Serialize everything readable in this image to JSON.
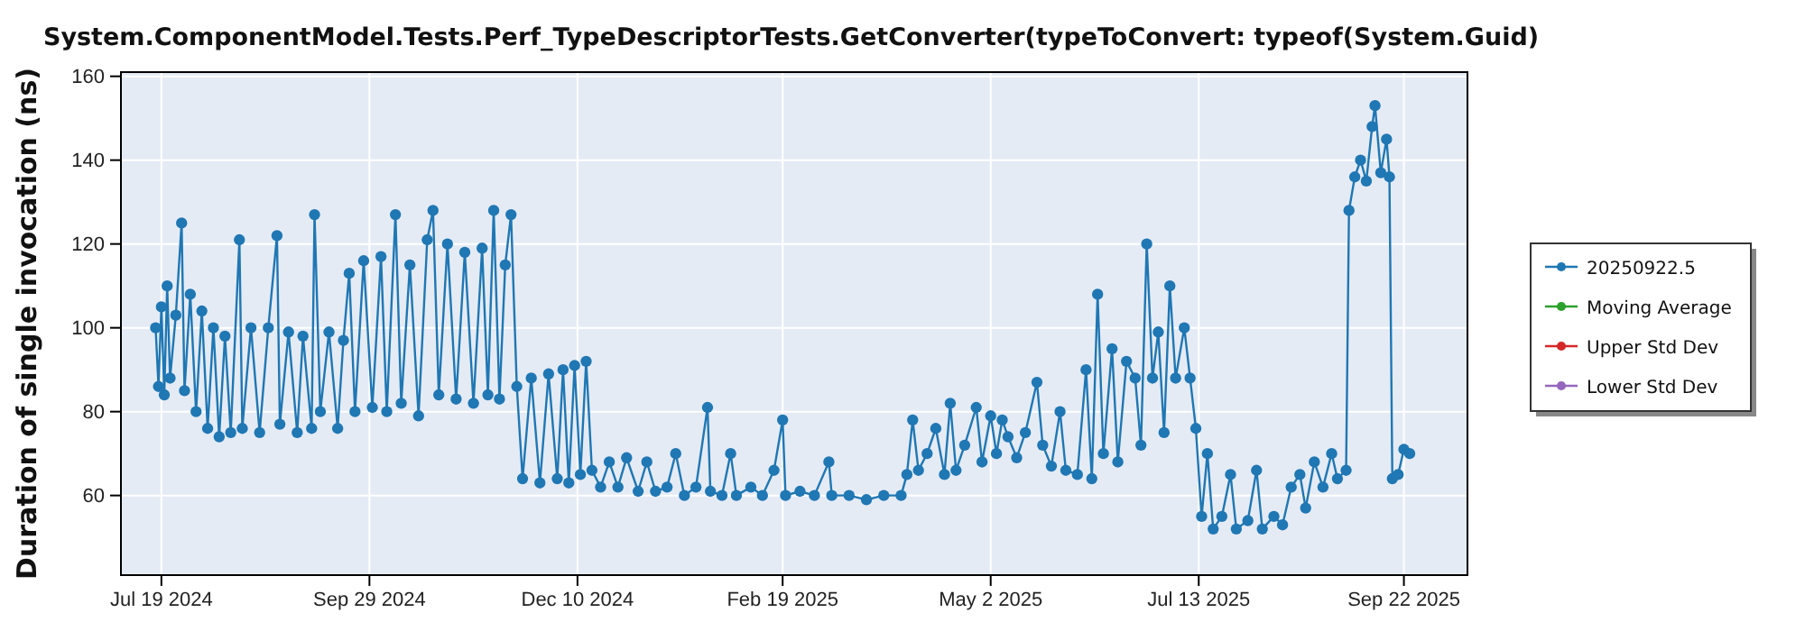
{
  "chart_data": {
    "type": "line",
    "title": "System.ComponentModel.Tests.Perf_TypeDescriptorTests.GetConverter(typeToConvert: typeof(System.Guid)",
    "ylabel": "Duration of single invocation (ns)",
    "x": [
      "2024-07-17",
      "2024-07-18",
      "2024-07-19",
      "2024-07-20",
      "2024-07-21",
      "2024-07-22",
      "2024-07-24",
      "2024-07-26",
      "2024-07-27",
      "2024-07-29",
      "2024-07-31",
      "2024-08-02",
      "2024-08-04",
      "2024-08-06",
      "2024-08-08",
      "2024-08-10",
      "2024-08-12",
      "2024-08-15",
      "2024-08-16",
      "2024-08-19",
      "2024-08-22",
      "2024-08-25",
      "2024-08-28",
      "2024-08-29",
      "2024-09-01",
      "2024-09-04",
      "2024-09-06",
      "2024-09-09",
      "2024-09-10",
      "2024-09-12",
      "2024-09-15",
      "2024-09-18",
      "2024-09-20",
      "2024-09-22",
      "2024-09-24",
      "2024-09-27",
      "2024-09-30",
      "2024-10-03",
      "2024-10-05",
      "2024-10-08",
      "2024-10-10",
      "2024-10-13",
      "2024-10-16",
      "2024-10-19",
      "2024-10-21",
      "2024-10-23",
      "2024-10-26",
      "2024-10-29",
      "2024-11-01",
      "2024-11-04",
      "2024-11-07",
      "2024-11-09",
      "2024-11-11",
      "2024-11-13",
      "2024-11-15",
      "2024-11-17",
      "2024-11-19",
      "2024-11-21",
      "2024-11-24",
      "2024-11-27",
      "2024-11-30",
      "2024-12-03",
      "2024-12-05",
      "2024-12-07",
      "2024-12-09",
      "2024-12-11",
      "2024-12-13",
      "2024-12-15",
      "2024-12-18",
      "2024-12-21",
      "2024-12-24",
      "2024-12-27",
      "2024-12-31",
      "2025-01-03",
      "2025-01-06",
      "2025-01-10",
      "2025-01-13",
      "2025-01-16",
      "2025-01-20",
      "2025-01-24",
      "2025-01-25",
      "2025-01-29",
      "2025-02-01",
      "2025-02-03",
      "2025-02-08",
      "2025-02-12",
      "2025-02-16",
      "2025-02-19",
      "2025-02-20",
      "2025-02-25",
      "2025-03-02",
      "2025-03-07",
      "2025-03-08",
      "2025-03-14",
      "2025-03-20",
      "2025-03-26",
      "2025-04-01",
      "2025-04-03",
      "2025-04-05",
      "2025-04-07",
      "2025-04-10",
      "2025-04-13",
      "2025-04-16",
      "2025-04-18",
      "2025-04-20",
      "2025-04-23",
      "2025-04-27",
      "2025-04-29",
      "2025-05-02",
      "2025-05-04",
      "2025-05-06",
      "2025-05-08",
      "2025-05-11",
      "2025-05-14",
      "2025-05-18",
      "2025-05-20",
      "2025-05-23",
      "2025-05-26",
      "2025-05-28",
      "2025-06-01",
      "2025-06-04",
      "2025-06-06",
      "2025-06-08",
      "2025-06-10",
      "2025-06-13",
      "2025-06-15",
      "2025-06-18",
      "2025-06-21",
      "2025-06-23",
      "2025-06-25",
      "2025-06-27",
      "2025-06-29",
      "2025-07-01",
      "2025-07-03",
      "2025-07-05",
      "2025-07-08",
      "2025-07-10",
      "2025-07-12",
      "2025-07-14",
      "2025-07-16",
      "2025-07-18",
      "2025-07-21",
      "2025-07-24",
      "2025-07-26",
      "2025-07-30",
      "2025-08-02",
      "2025-08-04",
      "2025-08-08",
      "2025-08-11",
      "2025-08-14",
      "2025-08-17",
      "2025-08-19",
      "2025-08-22",
      "2025-08-25",
      "2025-08-28",
      "2025-08-30",
      "2025-09-02",
      "2025-09-03",
      "2025-09-05",
      "2025-09-07",
      "2025-09-09",
      "2025-09-11",
      "2025-09-12",
      "2025-09-14",
      "2025-09-16",
      "2025-09-17",
      "2025-09-18",
      "2025-09-20",
      "2025-09-22",
      "2025-09-24"
    ],
    "series": [
      {
        "name": "20250922.5",
        "color": "#1f77b4",
        "values": [
          100,
          86,
          105,
          84,
          110,
          88,
          103,
          125,
          85,
          108,
          80,
          104,
          76,
          100,
          74,
          98,
          75,
          121,
          76,
          100,
          75,
          100,
          122,
          77,
          99,
          75,
          98,
          76,
          127,
          80,
          99,
          76,
          97,
          113,
          80,
          116,
          81,
          117,
          80,
          127,
          82,
          115,
          79,
          121,
          128,
          84,
          120,
          83,
          118,
          82,
          119,
          84,
          128,
          83,
          115,
          127,
          86,
          64,
          88,
          63,
          89,
          64,
          90,
          63,
          91,
          65,
          92,
          66,
          62,
          68,
          62,
          69,
          61,
          68,
          61,
          62,
          70,
          60,
          62,
          81,
          61,
          60,
          70,
          60,
          62,
          60,
          66,
          78,
          60,
          61,
          60,
          68,
          60,
          60,
          59,
          60,
          60,
          65,
          78,
          66,
          70,
          76,
          65,
          82,
          66,
          72,
          81,
          68,
          79,
          70,
          78,
          74,
          69,
          75,
          87,
          72,
          67,
          80,
          66,
          65,
          90,
          64,
          108,
          70,
          95,
          68,
          92,
          88,
          72,
          120,
          88,
          99,
          75,
          110,
          88,
          100,
          88,
          76,
          55,
          70,
          52,
          55,
          65,
          52,
          54,
          66,
          52,
          55,
          53,
          62,
          65,
          57,
          68,
          62,
          70,
          64,
          66,
          128,
          136,
          140,
          135,
          148,
          153,
          137,
          145,
          136,
          64,
          65,
          71,
          70
        ]
      },
      {
        "name": "Moving Average",
        "color": "#2ca02c",
        "values": [
          null,
          null,
          null,
          null,
          null,
          null,
          null,
          null,
          null,
          null,
          null,
          null,
          null,
          null,
          null,
          null,
          null,
          null,
          null,
          null,
          null,
          null,
          null,
          null,
          null,
          null,
          null,
          null,
          null,
          null,
          null,
          null,
          null,
          null,
          null,
          null,
          null,
          null,
          null,
          null,
          null,
          null,
          null,
          null,
          null,
          null,
          null,
          null,
          null,
          null,
          null,
          null,
          null,
          null,
          null,
          null,
          null,
          null,
          null,
          null,
          null,
          null,
          null,
          null,
          null,
          null,
          null,
          null,
          null,
          null,
          null,
          null,
          null,
          null,
          null,
          null,
          null,
          null,
          null,
          null,
          null,
          null,
          null,
          null,
          null,
          null,
          null,
          null,
          null,
          null,
          null,
          null,
          null,
          null,
          null,
          null,
          null,
          null,
          null,
          null,
          null,
          null,
          null,
          null,
          null,
          null,
          null,
          null,
          null,
          null,
          null,
          null,
          null,
          null,
          null,
          null,
          null,
          null,
          null,
          null,
          null,
          null,
          null,
          null,
          null,
          null,
          null,
          null,
          null,
          null,
          null,
          null,
          null,
          null,
          null,
          null,
          null,
          null,
          null,
          null,
          null,
          null,
          null,
          null,
          null,
          null,
          null,
          null,
          null,
          null,
          null,
          null,
          null,
          null,
          null,
          null,
          null,
          null,
          null,
          null,
          null,
          null,
          null,
          null,
          null,
          null,
          null,
          null,
          null,
          null
        ]
      },
      {
        "name": "Upper Std Dev",
        "color": "#d62728",
        "values": [
          null,
          null,
          null,
          null,
          null,
          null,
          null,
          null,
          null,
          null,
          null,
          null,
          null,
          null,
          null,
          null,
          null,
          null,
          null,
          null,
          null,
          null,
          null,
          null,
          null,
          null,
          null,
          null,
          null,
          null,
          null,
          null,
          null,
          null,
          null,
          null,
          null,
          null,
          null,
          null,
          null,
          null,
          null,
          null,
          null,
          null,
          null,
          null,
          null,
          null,
          null,
          null,
          null,
          null,
          null,
          null,
          null,
          null,
          null,
          null,
          null,
          null,
          null,
          null,
          null,
          null,
          null,
          null,
          null,
          null,
          null,
          null,
          null,
          null,
          null,
          null,
          null,
          null,
          null,
          null,
          null,
          null,
          null,
          null,
          null,
          null,
          null,
          null,
          null,
          null,
          null,
          null,
          null,
          null,
          null,
          null,
          null,
          null,
          null,
          null,
          null,
          null,
          null,
          null,
          null,
          null,
          null,
          null,
          null,
          null,
          null,
          null,
          null,
          null,
          null,
          null,
          null,
          null,
          null,
          null,
          null,
          null,
          null,
          null,
          null,
          null,
          null,
          null,
          null,
          null,
          null,
          null,
          null,
          null,
          null,
          null,
          null,
          null,
          null,
          null,
          null,
          null,
          null,
          null,
          null,
          null,
          null,
          null,
          null,
          null,
          null,
          null,
          null,
          null,
          null,
          null,
          null,
          null,
          null,
          null,
          null,
          null,
          null,
          null,
          null,
          null,
          null,
          null,
          null,
          null
        ]
      },
      {
        "name": "Lower Std Dev",
        "color": "#9467bd",
        "values": [
          null,
          null,
          null,
          null,
          null,
          null,
          null,
          null,
          null,
          null,
          null,
          null,
          null,
          null,
          null,
          null,
          null,
          null,
          null,
          null,
          null,
          null,
          null,
          null,
          null,
          null,
          null,
          null,
          null,
          null,
          null,
          null,
          null,
          null,
          null,
          null,
          null,
          null,
          null,
          null,
          null,
          null,
          null,
          null,
          null,
          null,
          null,
          null,
          null,
          null,
          null,
          null,
          null,
          null,
          null,
          null,
          null,
          null,
          null,
          null,
          null,
          null,
          null,
          null,
          null,
          null,
          null,
          null,
          null,
          null,
          null,
          null,
          null,
          null,
          null,
          null,
          null,
          null,
          null,
          null,
          null,
          null,
          null,
          null,
          null,
          null,
          null,
          null,
          null,
          null,
          null,
          null,
          null,
          null,
          null,
          null,
          null,
          null,
          null,
          null,
          null,
          null,
          null,
          null,
          null,
          null,
          null,
          null,
          null,
          null,
          null,
          null,
          null,
          null,
          null,
          null,
          null,
          null,
          null,
          null,
          null,
          null,
          null,
          null,
          null,
          null,
          null,
          null,
          null,
          null,
          null,
          null,
          null,
          null,
          null,
          null,
          null,
          null,
          null,
          null,
          null,
          null,
          null,
          null,
          null,
          null,
          null,
          null,
          null,
          null,
          null,
          null,
          null,
          null,
          null,
          null,
          null,
          null,
          null,
          null,
          null,
          null,
          null,
          null,
          null,
          null,
          null,
          null,
          null,
          null
        ]
      }
    ],
    "xlim": [
      "2024-07-05",
      "2025-10-14"
    ],
    "xticks": [
      {
        "value": "2024-07-19",
        "label": "Jul 19 2024"
      },
      {
        "value": "2024-09-29",
        "label": "Sep 29 2024"
      },
      {
        "value": "2024-12-10",
        "label": "Dec 10 2024"
      },
      {
        "value": "2025-02-19",
        "label": "Feb 19 2025"
      },
      {
        "value": "2025-05-02",
        "label": "May 2 2025"
      },
      {
        "value": "2025-07-13",
        "label": "Jul 13 2025"
      },
      {
        "value": "2025-09-22",
        "label": "Sep 22 2025"
      }
    ],
    "ylim": [
      41,
      161
    ],
    "yticks": [
      60,
      80,
      100,
      120,
      140,
      160
    ],
    "grid": true,
    "legend": "right",
    "marker": "circle",
    "line_style": "solid"
  }
}
